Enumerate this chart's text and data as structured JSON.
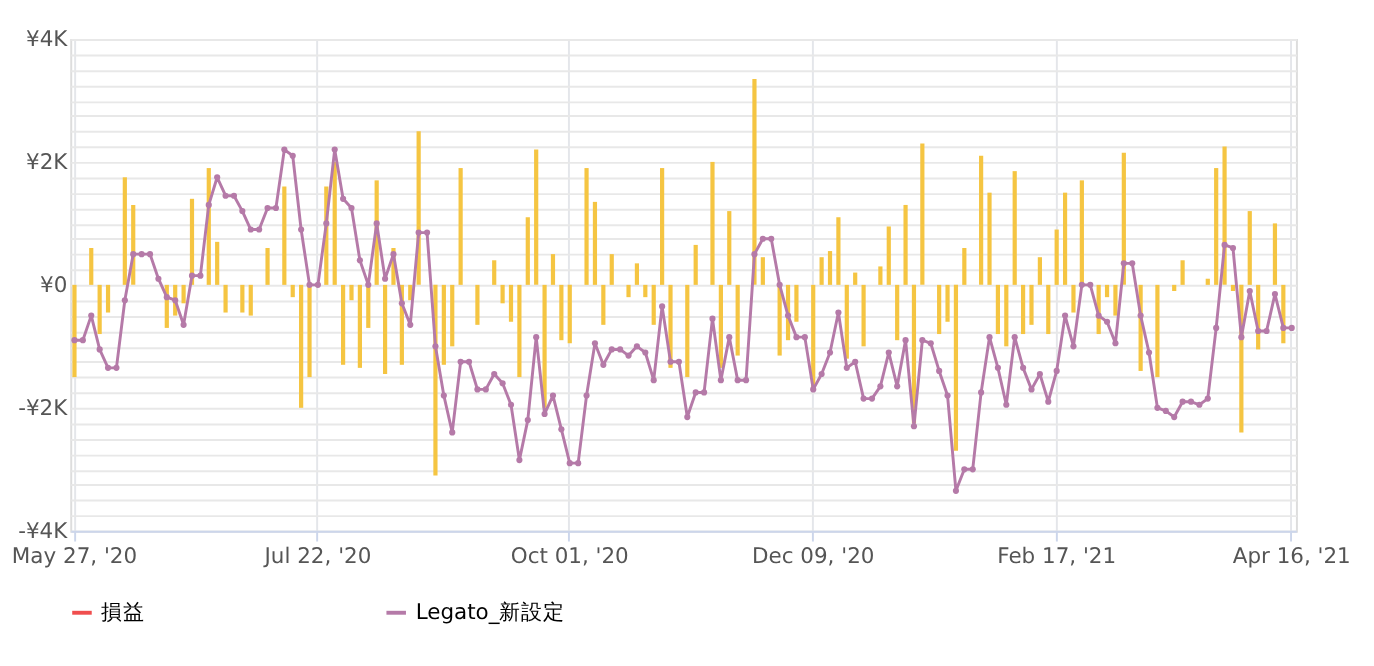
{
  "chart_data": {
    "type": "bar",
    "categories": [
      "May 27, '20",
      null,
      null,
      null,
      null,
      null,
      null,
      null,
      null,
      null,
      null,
      null,
      null,
      null,
      null,
      null,
      null,
      null,
      null,
      null,
      null,
      null,
      null,
      null,
      null,
      null,
      null,
      null,
      null,
      "Jul 22, '20",
      null,
      null,
      null,
      null,
      null,
      null,
      null,
      null,
      null,
      null,
      null,
      null,
      null,
      null,
      null,
      null,
      null,
      null,
      null,
      null,
      null,
      null,
      null,
      null,
      null,
      null,
      null,
      null,
      null,
      "Oct 01, '20",
      null,
      null,
      null,
      null,
      null,
      null,
      null,
      null,
      null,
      null,
      null,
      null,
      null,
      null,
      null,
      null,
      null,
      null,
      null,
      null,
      null,
      null,
      null,
      null,
      null,
      null,
      null,
      null,
      "Dec 09, '20",
      null,
      null,
      null,
      null,
      null,
      null,
      null,
      null,
      null,
      null,
      null,
      null,
      null,
      null,
      null,
      null,
      null,
      null,
      null,
      null,
      null,
      null,
      null,
      null,
      null,
      null,
      null,
      null,
      "Feb 17, '21",
      null,
      null,
      null,
      null,
      null,
      null,
      null,
      null,
      null,
      null,
      null,
      null,
      null,
      null,
      null,
      null,
      null,
      null,
      null,
      null,
      null,
      null,
      null,
      null,
      null,
      null,
      null,
      "Apr 16, '21"
    ],
    "series": [
      {
        "color": "#f5c542",
        "values": [
          -1500,
          null,
          600,
          -800,
          -450,
          null,
          1750,
          1300,
          null,
          null,
          null,
          -700,
          -500,
          -300,
          1400,
          null,
          1900,
          700,
          -450,
          null,
          -450,
          -500,
          null,
          600,
          null,
          1600,
          -200,
          -2000,
          -1500,
          null,
          1600,
          2000,
          -1300,
          -250,
          -1350,
          -700,
          1700,
          -1450,
          600,
          -1300,
          -250,
          2500,
          null,
          -3100,
          -1300,
          -1000,
          1900,
          null,
          -650,
          null,
          400,
          -300,
          -600,
          -1500,
          1100,
          2200,
          -2000,
          500,
          -900,
          -950,
          null,
          1900,
          1350,
          -650,
          500,
          null,
          -200,
          350,
          -200,
          -650,
          1900,
          -1350,
          null,
          -1500,
          650,
          null,
          2000,
          -1350,
          1200,
          -1150,
          null,
          3350,
          450,
          null,
          -1150,
          -900,
          -600,
          null,
          -1700,
          450,
          550,
          1100,
          -1200,
          200,
          -1000,
          null,
          300,
          950,
          -900,
          1300,
          -2250,
          2300,
          null,
          -800,
          -600,
          -2700,
          600,
          null,
          2100,
          1500,
          -800,
          -1000,
          1850,
          -800,
          -650,
          450,
          -800,
          900,
          1500,
          -450,
          1700,
          null,
          -800,
          -200,
          -500,
          2150,
          null,
          -1400,
          null,
          -1500,
          null,
          -100,
          400,
          null,
          null,
          100,
          1900,
          2250,
          -100,
          -2400,
          1200,
          -1050,
          null,
          1000,
          -950,
          null
        ]
      },
      {
        "type": "line",
        "name": "損益",
        "color": "#f04e4e",
        "marker": "circle",
        "values": [
          null,
          null,
          null,
          null,
          null,
          null,
          null,
          null,
          null,
          null,
          null,
          null,
          null,
          null,
          null,
          null,
          null,
          null,
          null,
          null,
          null,
          null,
          null,
          null,
          null,
          null,
          null,
          null,
          null,
          null,
          null,
          null,
          null,
          null,
          null,
          null,
          null,
          null,
          null,
          null,
          null,
          null,
          null,
          null,
          null,
          null,
          null,
          null,
          null,
          null,
          null,
          null,
          null,
          null,
          null,
          null,
          null,
          null,
          null,
          null,
          null,
          null,
          null,
          null,
          null,
          null,
          null,
          null,
          null,
          null,
          null,
          null,
          null,
          null,
          null,
          null,
          null,
          null,
          null,
          null,
          null,
          null,
          null,
          null,
          null,
          null,
          null,
          null,
          null,
          null,
          null,
          null,
          null,
          null,
          null,
          null,
          null,
          null,
          null,
          null,
          null,
          null,
          null,
          null,
          null,
          null,
          null,
          null,
          null,
          null,
          null,
          null,
          null,
          null,
          null,
          null,
          null,
          null,
          null,
          null,
          null,
          null,
          null,
          null,
          null,
          null,
          null,
          null,
          null,
          null,
          null,
          null,
          null,
          null,
          null,
          null,
          null,
          null,
          null,
          null,
          null,
          null,
          null,
          null,
          null,
          null
        ]
      },
      {
        "type": "line",
        "name": "Legato_新設定",
        "color": "#b57aa8",
        "marker": "circle",
        "values": [
          -900,
          -900,
          -500,
          -1050,
          -1350,
          -1350,
          -250,
          500,
          500,
          500,
          100,
          -200,
          -250,
          -650,
          150,
          150,
          1300,
          1750,
          1450,
          1450,
          1200,
          900,
          900,
          1250,
          1250,
          2200,
          2100,
          900,
          0,
          0,
          1000,
          2200,
          1400,
          1250,
          400,
          0,
          1000,
          100,
          500,
          -300,
          -650,
          850,
          850,
          -1000,
          -1800,
          -2400,
          -1250,
          -1250,
          -1700,
          -1700,
          -1450,
          -1600,
          -1950,
          -2850,
          -2200,
          -850,
          -2100,
          -1800,
          -2350,
          -2900,
          -2900,
          -1800,
          -950,
          -1300,
          -1050,
          -1050,
          -1150,
          -1000,
          -1100,
          -1550,
          -350,
          -1250,
          -1250,
          -2150,
          -1750,
          -1750,
          -550,
          -1550,
          -850,
          -1550,
          -1550,
          500,
          750,
          750,
          0,
          -500,
          -850,
          -850,
          -1700,
          -1450,
          -1100,
          -450,
          -1350,
          -1250,
          -1850,
          -1850,
          -1650,
          -1100,
          -1650,
          -900,
          -2300,
          -900,
          -950,
          -1400,
          -1800,
          -3350,
          -3000,
          -3000,
          -1750,
          -850,
          -1350,
          -1950,
          -850,
          -1350,
          -1700,
          -1450,
          -1900,
          -1400,
          -500,
          -1000,
          0,
          0,
          -500,
          -600,
          -950,
          350,
          350,
          -500,
          -1100,
          -2000,
          -2050,
          -2150,
          -1900,
          -1900,
          -1950,
          -1850,
          -700,
          650,
          600,
          -850,
          -100,
          -750,
          -750,
          -150,
          -700,
          -700
        ]
      }
    ],
    "ylim": [
      -4000,
      4000
    ],
    "yticks": [
      {
        "value": -4000,
        "label": "-¥4K"
      },
      {
        "value": -3750,
        "label": null
      },
      {
        "value": -3500,
        "label": null
      },
      {
        "value": -3250,
        "label": null
      },
      {
        "value": -3000,
        "label": null
      },
      {
        "value": -2750,
        "label": null
      },
      {
        "value": -2500,
        "label": null
      },
      {
        "value": -2250,
        "label": null
      },
      {
        "value": -2000,
        "label": "-¥2K"
      },
      {
        "value": -1750,
        "label": null
      },
      {
        "value": -1500,
        "label": null
      },
      {
        "value": -1250,
        "label": null
      },
      {
        "value": -1000,
        "label": null
      },
      {
        "value": -750,
        "label": null
      },
      {
        "value": -500,
        "label": null
      },
      {
        "value": -250,
        "label": null
      },
      {
        "value": 0,
        "label": "¥0"
      },
      {
        "value": 250,
        "label": null
      },
      {
        "value": 500,
        "label": null
      },
      {
        "value": 750,
        "label": null
      },
      {
        "value": 1000,
        "label": null
      },
      {
        "value": 1250,
        "label": null
      },
      {
        "value": 1500,
        "label": null
      },
      {
        "value": 1750,
        "label": null
      },
      {
        "value": 2000,
        "label": "¥2K"
      },
      {
        "value": 2250,
        "label": null
      },
      {
        "value": 2500,
        "label": null
      },
      {
        "value": 2750,
        "label": null
      },
      {
        "value": 3000,
        "label": null
      },
      {
        "value": 3250,
        "label": null
      },
      {
        "value": 3500,
        "label": null
      },
      {
        "value": 3750,
        "label": null
      },
      {
        "value": 4000,
        "label": "¥4K"
      }
    ],
    "grid": true,
    "legend": "bottom"
  }
}
